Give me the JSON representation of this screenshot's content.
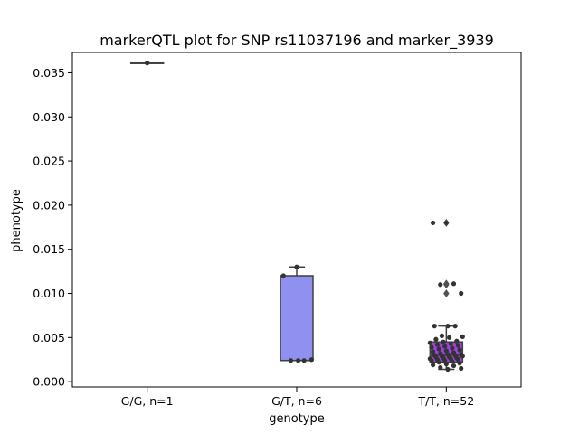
{
  "chart_data": {
    "type": "box",
    "title": "markerQTL plot for SNP rs11037196 and marker_3939",
    "xlabel": "genotype",
    "ylabel": "phenotype",
    "ylim": [
      -0.0006,
      0.0373
    ],
    "yticks": [
      0.0,
      0.005,
      0.01,
      0.015,
      0.02,
      0.025,
      0.03,
      0.035
    ],
    "ytick_labels": [
      "0.000",
      "0.005",
      "0.010",
      "0.015",
      "0.020",
      "0.025",
      "0.030",
      "0.035"
    ],
    "categories": [
      "G/G, n=1",
      "G/T, n=6",
      "T/T, n=52"
    ],
    "boxes": [
      {
        "category": "G/G, n=1",
        "color": "#8c8cf0",
        "q1": 0.0361,
        "median": 0.0361,
        "q3": 0.0361,
        "whisker_low": 0.0361,
        "whisker_high": 0.0361,
        "fliers": []
      },
      {
        "category": "G/T, n=6",
        "color": "#9090f0",
        "q1": 0.0024,
        "median": 0.0024,
        "q3": 0.012,
        "whisker_low": 0.0024,
        "whisker_high": 0.013,
        "fliers": []
      },
      {
        "category": "T/T, n=52",
        "color": "#a040e0",
        "q1": 0.0022,
        "median": 0.003,
        "q3": 0.0045,
        "whisker_low": 0.0014,
        "whisker_high": 0.0063,
        "fliers": [
          0.018,
          0.0111,
          0.011,
          0.01
        ]
      }
    ],
    "points": [
      {
        "category": "G/G, n=1",
        "values": [
          0.0361
        ]
      },
      {
        "category": "G/T, n=6",
        "values": [
          0.013,
          0.012,
          0.0024,
          0.0024,
          0.0025,
          0.0024
        ]
      },
      {
        "category": "T/T, n=52",
        "values": [
          0.018,
          0.018,
          0.0111,
          0.011,
          0.01,
          0.0063,
          0.0063,
          0.0063,
          0.0052,
          0.0051,
          0.005,
          0.0048,
          0.0046,
          0.0045,
          0.0044,
          0.0043,
          0.0042,
          0.0041,
          0.004,
          0.0039,
          0.0038,
          0.0037,
          0.0036,
          0.0035,
          0.0034,
          0.0033,
          0.0032,
          0.0031,
          0.0031,
          0.003,
          0.003,
          0.0029,
          0.0029,
          0.0028,
          0.0028,
          0.0027,
          0.0027,
          0.0026,
          0.0026,
          0.0025,
          0.0025,
          0.0024,
          0.0024,
          0.0023,
          0.0022,
          0.0021,
          0.002,
          0.0019,
          0.0018,
          0.0016,
          0.0015,
          0.0014
        ]
      }
    ],
    "grid": false,
    "legend": "none"
  }
}
